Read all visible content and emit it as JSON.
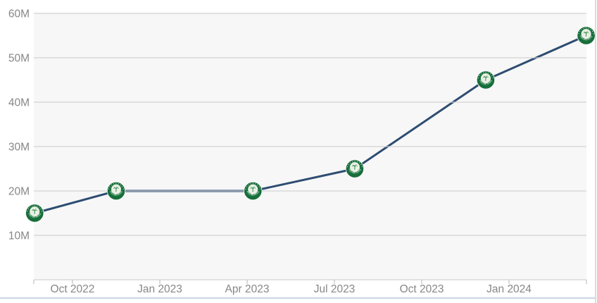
{
  "panel": {
    "name": "followers-growth-chart"
  },
  "colors": {
    "plot_background": "#f7f7f8",
    "gridline": "#dcdcdc",
    "tick_mark": "#b5b5b5",
    "axis_label": "#878787",
    "series_line": "#2e4d71",
    "badge_green": "#16703b",
    "badge_dark_green": "#0e5a2d",
    "badge_inner": "#eaf0e4",
    "card_bottom_border": "#ccd6e4",
    "card_right_border": "#dcdcdc"
  },
  "chart_data": {
    "type": "line",
    "title": "",
    "xlabel": "",
    "ylabel": "",
    "legend": "none",
    "grid": "horizontal",
    "x_axis": {
      "domain_months": [
        -1.33,
        17.66
      ],
      "ticks": [
        {
          "label": "Oct 2022",
          "month": 0
        },
        {
          "label": "Jan 2023",
          "month": 3
        },
        {
          "label": "Apr 2023",
          "month": 6
        },
        {
          "label": "Jul 2023",
          "month": 9
        },
        {
          "label": "Oct 2023",
          "month": 12
        },
        {
          "label": "Jan 2024",
          "month": 15
        }
      ]
    },
    "y_axis": {
      "min": 0,
      "max": 60,
      "unit": "millions",
      "gridline_values": [
        0,
        10,
        20,
        30,
        40,
        50,
        60
      ],
      "ticks": [
        {
          "label": "10M",
          "value": 10
        },
        {
          "label": "20M",
          "value": 20
        },
        {
          "label": "30M",
          "value": 30
        },
        {
          "label": "40M",
          "value": 40
        },
        {
          "label": "50M",
          "value": 50
        },
        {
          "label": "60M",
          "value": 60
        }
      ]
    },
    "series": [
      {
        "name": "Palmeiras",
        "marker": "palmeiras-crest-badge",
        "color": "#2e4d71",
        "points": [
          {
            "date": "Aug 2022",
            "month": -1.3,
            "value_millions": 15
          },
          {
            "date": "Nov 2022",
            "month": 1.5,
            "value_millions": 20
          },
          {
            "date": "Apr 2023",
            "month": 6.2,
            "value_millions": 20
          },
          {
            "date": "Jul 2023",
            "month": 9.7,
            "value_millions": 25
          },
          {
            "date": "Dec 2023",
            "month": 14.2,
            "value_millions": 45
          },
          {
            "date": "Mar 2024",
            "month": 17.65,
            "value_millions": 55
          }
        ]
      }
    ]
  }
}
